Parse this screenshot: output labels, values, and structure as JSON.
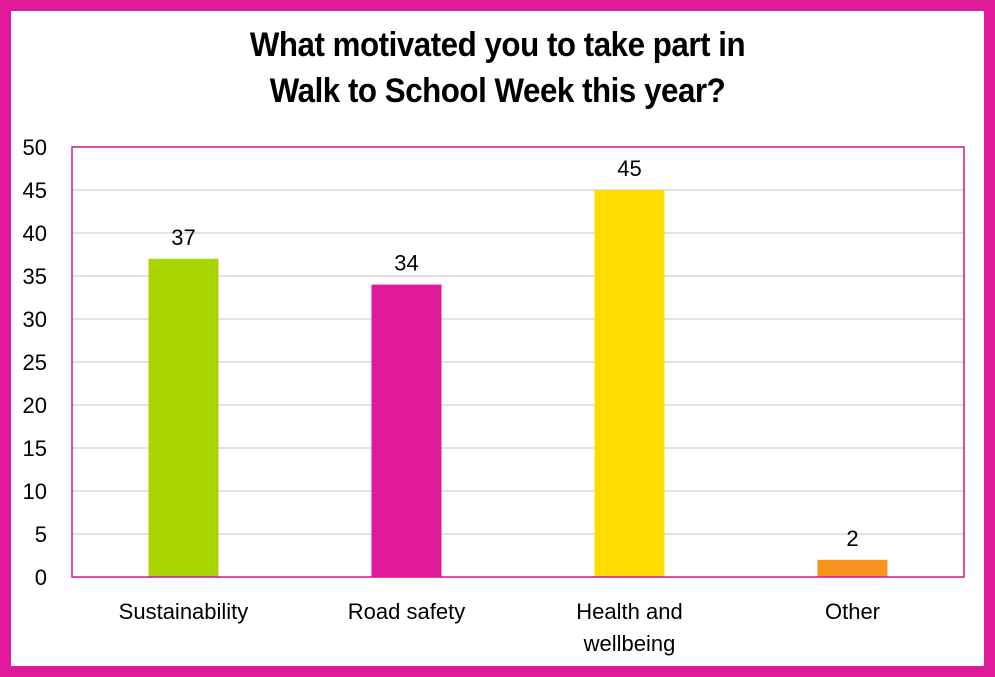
{
  "chart_data": {
    "type": "bar",
    "title_lines": [
      "What motivated you to take part in",
      "Walk to School Week this year?"
    ],
    "categories": [
      [
        "Sustainability"
      ],
      [
        "Road safety"
      ],
      [
        "Health and",
        "wellbeing"
      ],
      [
        "Other"
      ]
    ],
    "values": [
      37,
      34,
      45,
      2
    ],
    "bar_colors": [
      "#a8d400",
      "#e0189a",
      "#ffdd00",
      "#f7941d"
    ],
    "ylim": [
      0,
      50
    ],
    "yticks": [
      0,
      5,
      10,
      15,
      20,
      25,
      30,
      35,
      40,
      45,
      50
    ],
    "grid": true,
    "data_labels": true,
    "xlabel": "",
    "ylabel": ""
  },
  "colors": {
    "frame": "#e0189a",
    "plot_border": "#d4148f",
    "gridline": "#d9d9d9"
  }
}
